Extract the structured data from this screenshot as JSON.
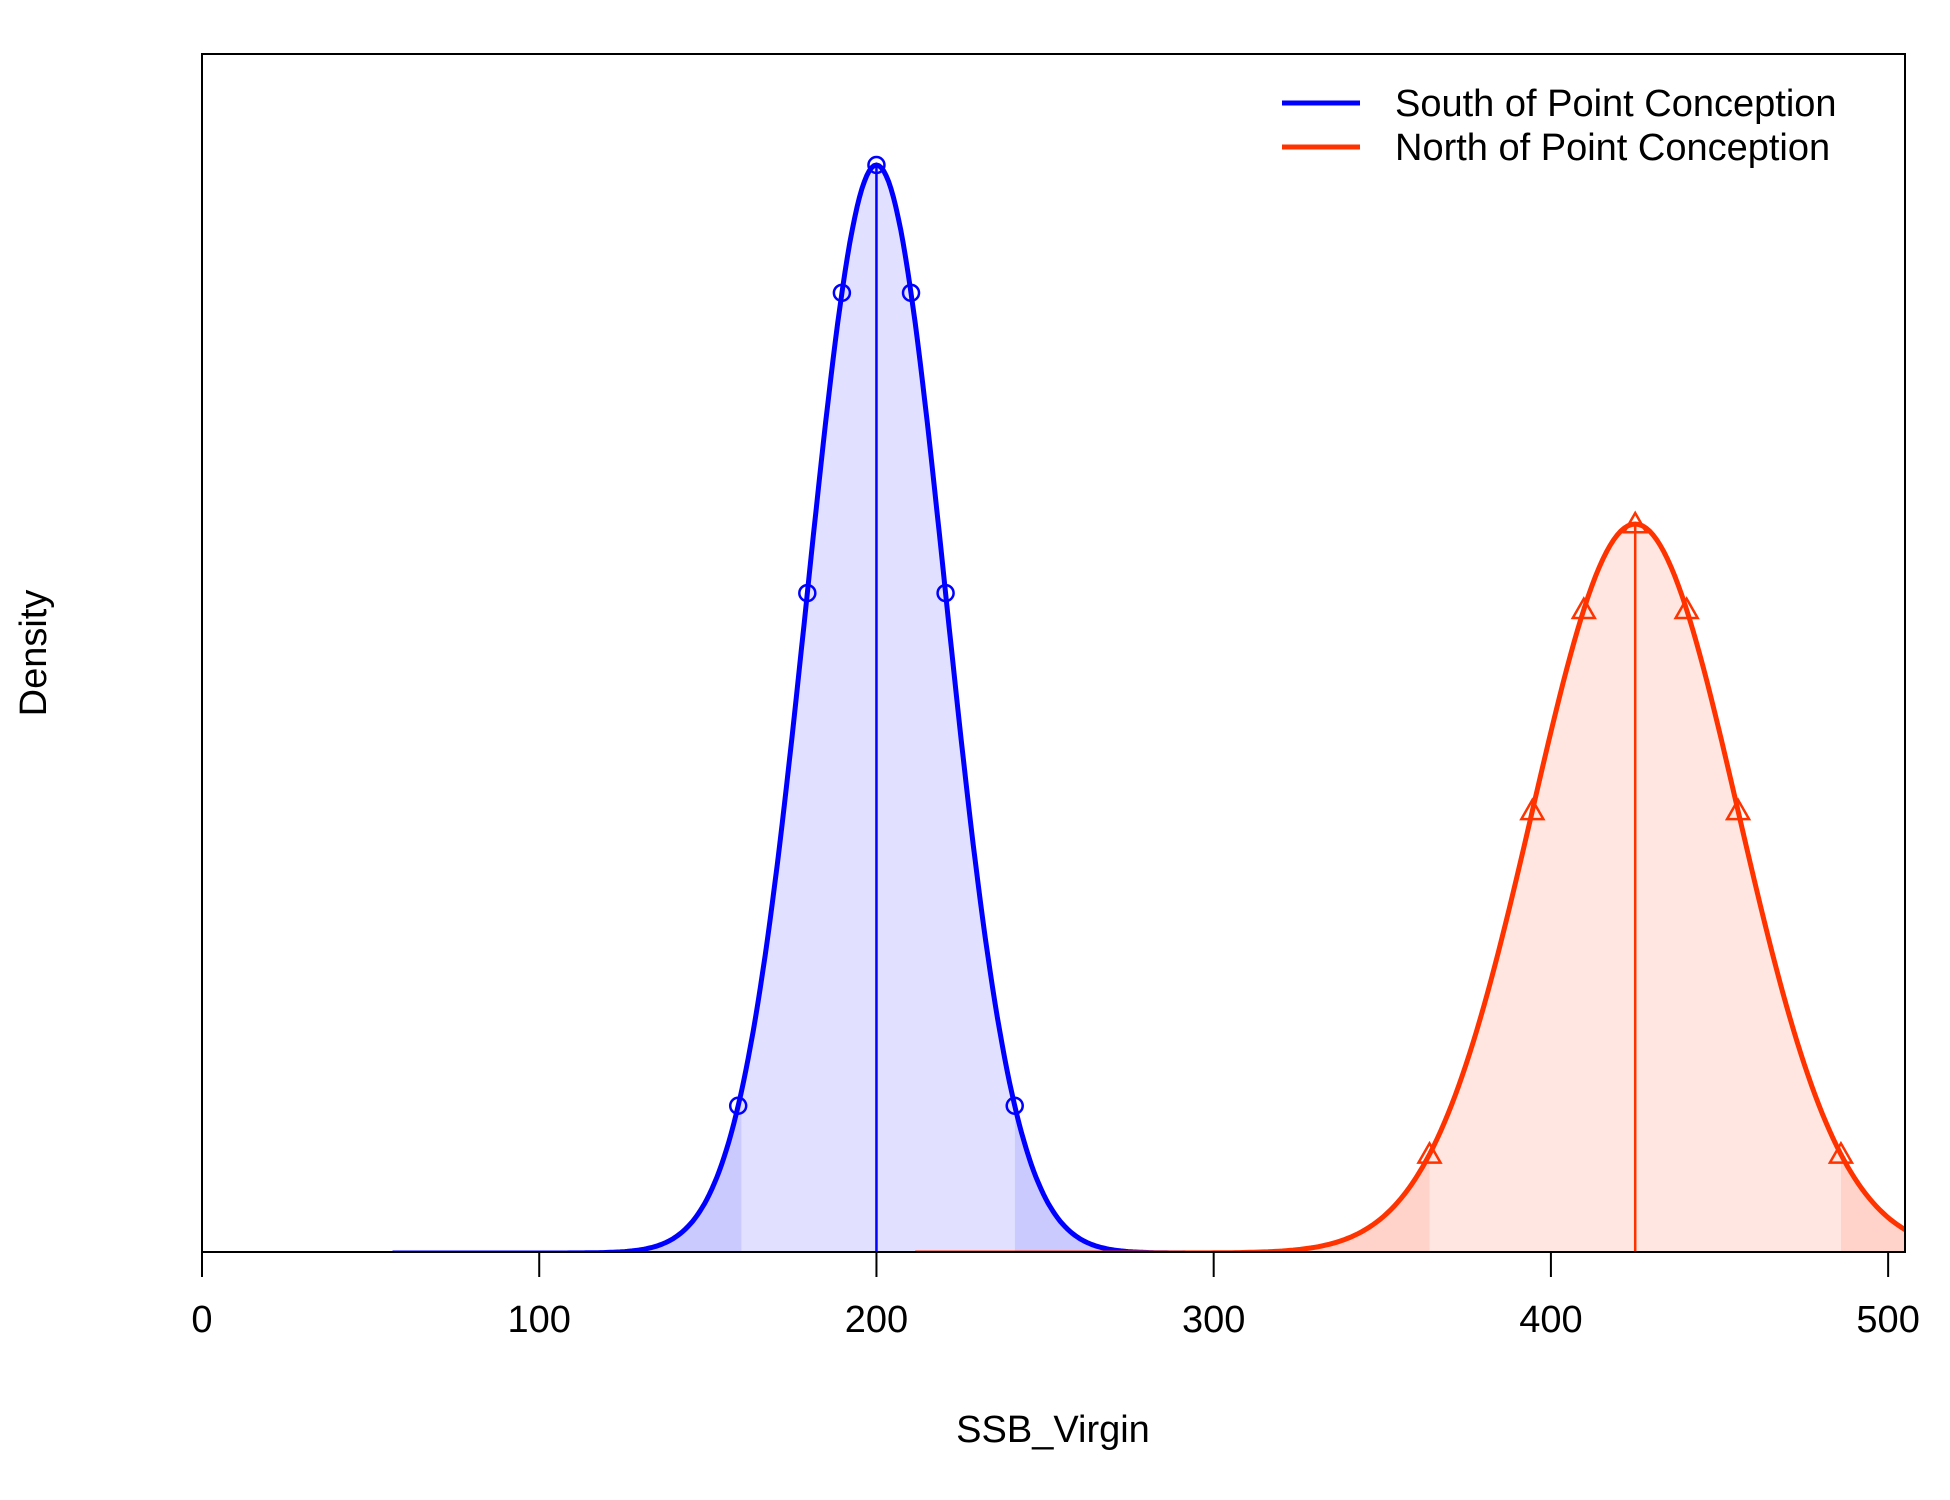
{
  "chart_data": {
    "type": "area",
    "xlabel": "SSB_Virgin",
    "ylabel": "Density",
    "xlim": [
      0,
      505
    ],
    "x_ticks": [
      0,
      100,
      200,
      300,
      400,
      500
    ],
    "x_tick_labels": [
      "0",
      "100",
      "200",
      "300",
      "400",
      "500"
    ],
    "y_ticks_shown": false,
    "grid": false,
    "legend_position": "top-right",
    "series": [
      {
        "name": "South of Point Conception",
        "color": "#0000ff",
        "fill": "#e1e1ff",
        "tail_fill": "#cacaff",
        "marker": "circle",
        "mean": 200,
        "sd": 20.5,
        "interval_95": [
          160,
          241
        ],
        "peak_relative": 1.0
      },
      {
        "name": "North of Point Conception",
        "color": "#ff3300",
        "fill": "#ffe6e0",
        "tail_fill": "#ffd3ca",
        "marker": "triangle",
        "mean": 425,
        "sd": 30.5,
        "interval_95": [
          364,
          486
        ],
        "peak_relative": 0.67
      }
    ]
  }
}
